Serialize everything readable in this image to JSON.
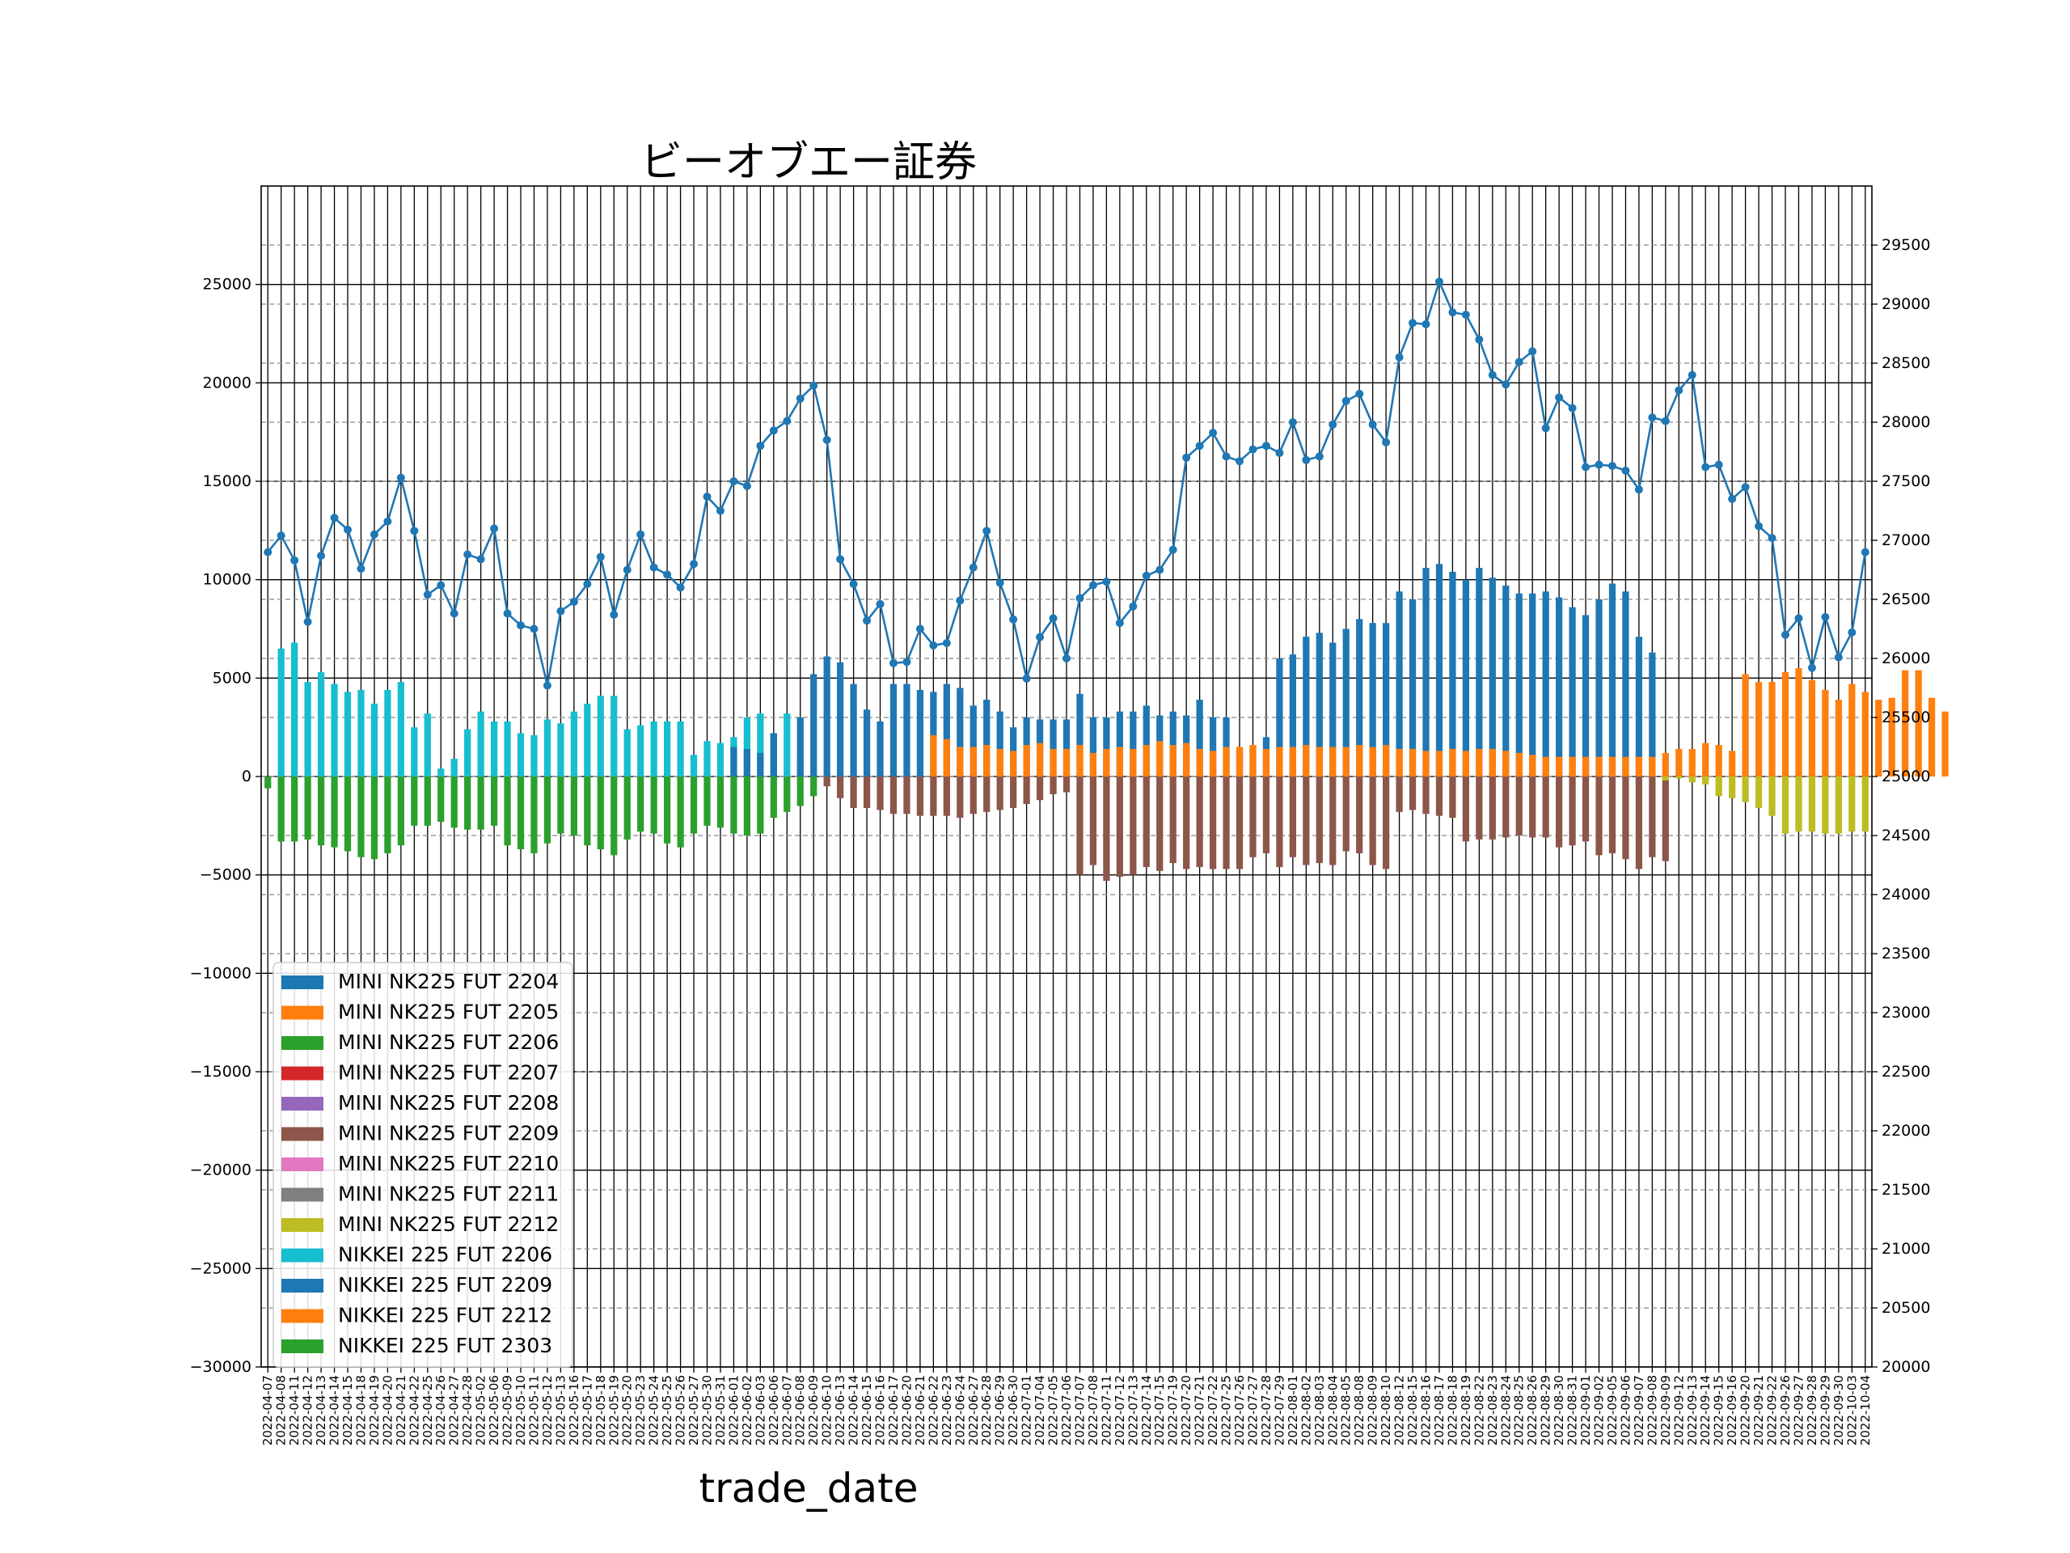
{
  "chart_data": {
    "type": "bar",
    "title": "ビーオブエー証券",
    "xlabel": "trade_date",
    "ylabel": "",
    "ylim": [
      -30000,
      30000
    ],
    "yticks": [
      -30000,
      -25000,
      -20000,
      -15000,
      -10000,
      -5000,
      0,
      5000,
      10000,
      15000,
      20000,
      25000
    ],
    "y2lim": [
      20000,
      30000
    ],
    "y2ticks": [
      20000,
      20500,
      21000,
      21500,
      22000,
      22500,
      23000,
      23500,
      24000,
      24500,
      25000,
      25500,
      26000,
      26500,
      27000,
      27500,
      28000,
      28500,
      29000,
      29500
    ],
    "grid": true,
    "legend_position": "lower-left",
    "categories": [
      "2022-04-07",
      "2022-04-08",
      "2022-04-11",
      "2022-04-12",
      "2022-04-13",
      "2022-04-14",
      "2022-04-15",
      "2022-04-18",
      "2022-04-19",
      "2022-04-20",
      "2022-04-21",
      "2022-04-22",
      "2022-04-25",
      "2022-04-26",
      "2022-04-27",
      "2022-04-28",
      "2022-05-02",
      "2022-05-06",
      "2022-05-09",
      "2022-05-10",
      "2022-05-11",
      "2022-05-12",
      "2022-05-13",
      "2022-05-16",
      "2022-05-17",
      "2022-05-18",
      "2022-05-19",
      "2022-05-20",
      "2022-05-23",
      "2022-05-24",
      "2022-05-25",
      "2022-05-26",
      "2022-05-27",
      "2022-05-30",
      "2022-05-31",
      "2022-06-01",
      "2022-06-02",
      "2022-06-03",
      "2022-06-06",
      "2022-06-07",
      "2022-06-08",
      "2022-06-09",
      "2022-06-10",
      "2022-06-13",
      "2022-06-14",
      "2022-06-15",
      "2022-06-16",
      "2022-06-17",
      "2022-06-20",
      "2022-06-21",
      "2022-06-22",
      "2022-06-23",
      "2022-06-24",
      "2022-06-27",
      "2022-06-28",
      "2022-06-29",
      "2022-06-30",
      "2022-07-01",
      "2022-07-04",
      "2022-07-05",
      "2022-07-06",
      "2022-07-07",
      "2022-07-08",
      "2022-07-11",
      "2022-07-12",
      "2022-07-13",
      "2022-07-14",
      "2022-07-15",
      "2022-07-19",
      "2022-07-20",
      "2022-07-21",
      "2022-07-22",
      "2022-07-25",
      "2022-07-26",
      "2022-07-27",
      "2022-07-28",
      "2022-07-29",
      "2022-08-01",
      "2022-08-02",
      "2022-08-03",
      "2022-08-04",
      "2022-08-05",
      "2022-08-08",
      "2022-08-09",
      "2022-08-10",
      "2022-08-12",
      "2022-08-15",
      "2022-08-16",
      "2022-08-17",
      "2022-08-18",
      "2022-08-19",
      "2022-08-22",
      "2022-08-23",
      "2022-08-24",
      "2022-08-25",
      "2022-08-26",
      "2022-08-29",
      "2022-08-30",
      "2022-08-31",
      "2022-09-01",
      "2022-09-02",
      "2022-09-05",
      "2022-09-06",
      "2022-09-07",
      "2022-09-08",
      "2022-09-09",
      "2022-09-12",
      "2022-09-13",
      "2022-09-14",
      "2022-09-15",
      "2022-09-16",
      "2022-09-20",
      "2022-09-21",
      "2022-09-22",
      "2022-09-26",
      "2022-09-27",
      "2022-09-28",
      "2022-09-29",
      "2022-09-30",
      "2022-10-03",
      "2022-10-04"
    ],
    "series": [
      {
        "name": "MINI NK225 FUT 2204",
        "color": "#1f77b4"
      },
      {
        "name": "MINI NK225 FUT 2205",
        "color": "#ff7f0e"
      },
      {
        "name": "MINI NK225 FUT 2206",
        "color": "#2ca02c"
      },
      {
        "name": "MINI NK225 FUT 2207",
        "color": "#d62728"
      },
      {
        "name": "MINI NK225 FUT 2208",
        "color": "#9467bd"
      },
      {
        "name": "MINI NK225 FUT 2209",
        "color": "#8c564b"
      },
      {
        "name": "MINI NK225 FUT 2210",
        "color": "#e377c2"
      },
      {
        "name": "MINI NK225 FUT 2211",
        "color": "#7f7f7f"
      },
      {
        "name": "MINI NK225 FUT 2212",
        "color": "#bcbd22"
      },
      {
        "name": "NIKKEI 225 FUT 2206",
        "color": "#17becf"
      },
      {
        "name": "NIKKEI 225 FUT 2209",
        "color": "#1f77b4"
      },
      {
        "name": "NIKKEI 225 FUT 2212",
        "color": "#ff7f0e"
      },
      {
        "name": "NIKKEI 225 FUT 2303",
        "color": "#2ca02c"
      }
    ],
    "segments": {
      "NIKKEI 225 FUT 2206": {
        "start": 0,
        "values": [
          0,
          6500,
          6800,
          4800,
          5300,
          4700,
          4300,
          4400,
          3700,
          4400,
          4800,
          2500,
          3200,
          400,
          900,
          2400,
          3300,
          2800,
          2800,
          2200,
          2100,
          2900,
          2700,
          3300,
          3700,
          4100,
          4100,
          2400,
          2600,
          2800,
          2800,
          2800,
          1100,
          1800,
          1700,
          2000,
          3000,
          3200,
          2200,
          3200,
          1000
        ]
      },
      "NIKKEI 225 FUT 2209": {
        "start": 35,
        "values": [
          1500,
          1400,
          1200,
          2200,
          0,
          3000,
          5200,
          6100,
          5800,
          4700,
          3400,
          2800,
          4700,
          4700,
          4400,
          4300,
          4700,
          4500,
          3600,
          3900,
          3300,
          2500,
          3000,
          2900,
          2900,
          2900,
          4200,
          3000,
          3000,
          3300,
          3300,
          3600,
          3100,
          3300,
          3100,
          3900,
          3000,
          3000,
          1300,
          1500,
          2000,
          6000,
          6200,
          7100,
          7300,
          6800,
          7500,
          8000,
          7800,
          7800,
          9400,
          9000,
          10600,
          10800,
          10400,
          10000,
          10600,
          10100,
          9700,
          9300,
          9300,
          9400,
          9100,
          8600,
          8200,
          9000,
          9800,
          9400,
          7100,
          6300
        ]
      },
      "NIKKEI 225 FUT 2212": {
        "start": 50,
        "values": [
          2100,
          1900,
          1500,
          1500,
          1600,
          1400,
          1300,
          1600,
          1700,
          1400,
          1400,
          1600,
          1200,
          1400,
          1500,
          1400,
          1600,
          1800,
          1600,
          1700,
          1400,
          1300,
          1500,
          1500,
          1600,
          1400,
          1500,
          1500,
          1600,
          1500,
          1500,
          1500,
          1600,
          1500,
          1600,
          1400,
          1400,
          1300,
          1300,
          1400,
          1300,
          1400,
          1400,
          1300,
          1200,
          1100,
          1000,
          1000,
          1000,
          1000,
          1000,
          1000,
          1000,
          1000,
          1000,
          1200,
          1400,
          1400,
          1700,
          1600,
          1300,
          5200,
          4800,
          4800,
          5300,
          5500,
          4900,
          4400,
          3900,
          4700,
          4300,
          3900,
          4000,
          5400,
          5400,
          4000,
          3300
        ]
      },
      "NIKKEI 225 FUT 2303": {
        "start": 0,
        "values": [
          -600,
          -3300,
          -3300,
          -3200,
          -3500,
          -3600,
          -3800,
          -4100,
          -4200,
          -3900,
          -3500,
          -2500,
          -2500,
          -2300,
          -2600,
          -2700,
          -2700,
          -2500,
          -3500,
          -3700,
          -3900,
          -3400,
          -2900,
          -3000,
          -3500,
          -3700,
          -4000,
          -3200,
          -2800,
          -2900,
          -3400,
          -3600,
          -2900,
          -2500,
          -2600,
          -2900,
          -3000,
          -2900,
          -2100,
          -1800,
          -1500,
          -1000
        ]
      },
      "MINI NK225 FUT 2209": {
        "start": 42,
        "values": [
          -500,
          -1100,
          -1600,
          -1600,
          -1700,
          -1900,
          -1900,
          -2000,
          -2000,
          -2000,
          -2100,
          -1900,
          -1800,
          -1700,
          -1600,
          -1400,
          -1200,
          -900,
          -800,
          -5000,
          -4500,
          -5300,
          -5100,
          -5000,
          -4600,
          -4800,
          -4400,
          -4700,
          -4600,
          -4700,
          -4700,
          -4700,
          -4100,
          -3900,
          -4600,
          -4100,
          -4500,
          -4400,
          -4500,
          -3800,
          -3900,
          -4500,
          -4700,
          -1800,
          -1700,
          -1900,
          -2000,
          -2100,
          -3300,
          -3200,
          -3200,
          -3100,
          -3000,
          -3100,
          -3100,
          -3600,
          -3500,
          -3300,
          -4000,
          -3900,
          -4200,
          -4700,
          -4100,
          -4300
        ]
      },
      "MINI NK225 FUT 2212": {
        "start": 105,
        "values": [
          -200,
          -100,
          -300,
          -400,
          -1000,
          -1100,
          -1300,
          -1600,
          -2000,
          -2900,
          -2800,
          -2800,
          -2900,
          -2900,
          -2800,
          -2800
        ]
      }
    },
    "price": [
      26900,
      27040,
      26830,
      26310,
      26870,
      27190,
      27090,
      26760,
      27050,
      27160,
      27530,
      27080,
      26540,
      26620,
      26380,
      26880,
      26840,
      27100,
      26380,
      26280,
      26250,
      25770,
      26400,
      26480,
      26630,
      26860,
      26370,
      26750,
      27050,
      26770,
      26710,
      26600,
      26800,
      27370,
      27250,
      27500,
      27460,
      27800,
      27930,
      28010,
      28200,
      28310,
      27850,
      26840,
      26630,
      26320,
      26460,
      25960,
      25970,
      26250,
      26110,
      26130,
      26490,
      26770,
      27080,
      26640,
      26330,
      25830,
      26180,
      26340,
      26000,
      26510,
      26620,
      26650,
      26300,
      26440,
      26700,
      26750,
      26920,
      27700,
      27800,
      27910,
      27710,
      27670,
      27770,
      27800,
      27740,
      28000,
      27680,
      27710,
      27980,
      28180,
      28240,
      27980,
      27830,
      28550,
      28840,
      28830,
      29190,
      28930,
      28910,
      28700,
      28400,
      28320,
      28510,
      28600,
      27950,
      28210,
      28120,
      27620,
      27640,
      27630,
      27590,
      27430,
      28040,
      28010,
      28270,
      28400,
      27620,
      27640,
      27350,
      27450,
      27120,
      27020,
      26200,
      26340,
      25920,
      26350,
      26010,
      26220,
      26900
    ]
  }
}
